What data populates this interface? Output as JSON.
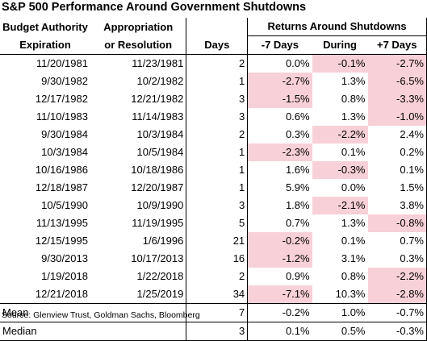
{
  "title": "S&P 500 Performance Around Government Shutdowns",
  "header": {
    "col1": [
      "Budget Authority",
      "Expiration"
    ],
    "col2": [
      "Appropriation",
      "or Resolution"
    ],
    "days": "Days",
    "group": "Returns Around Shutdowns",
    "minus7": "-7 Days",
    "during": "During",
    "plus7": "+7 Days"
  },
  "rows": [
    {
      "exp": "11/20/1981",
      "res": "11/23/1981",
      "days": "2",
      "m7": "0.0%",
      "during": "-0.1%",
      "p7": "-2.7%"
    },
    {
      "exp": "9/30/1982",
      "res": "10/2/1982",
      "days": "1",
      "m7": "-2.7%",
      "during": "1.3%",
      "p7": "-6.5%"
    },
    {
      "exp": "12/17/1982",
      "res": "12/21/1982",
      "days": "3",
      "m7": "-1.5%",
      "during": "0.8%",
      "p7": "-3.3%"
    },
    {
      "exp": "11/10/1983",
      "res": "11/14/1983",
      "days": "3",
      "m7": "0.6%",
      "during": "1.3%",
      "p7": "-1.0%"
    },
    {
      "exp": "9/30/1984",
      "res": "10/3/1984",
      "days": "2",
      "m7": "0.3%",
      "during": "-2.2%",
      "p7": "2.4%"
    },
    {
      "exp": "10/3/1984",
      "res": "10/5/1984",
      "days": "1",
      "m7": "-2.3%",
      "during": "0.1%",
      "p7": "0.2%"
    },
    {
      "exp": "10/16/1986",
      "res": "10/18/1986",
      "days": "1",
      "m7": "1.6%",
      "during": "-0.3%",
      "p7": "0.1%"
    },
    {
      "exp": "12/18/1987",
      "res": "12/20/1987",
      "days": "1",
      "m7": "5.9%",
      "during": "0.0%",
      "p7": "1.5%"
    },
    {
      "exp": "10/5/1990",
      "res": "10/9/1990",
      "days": "3",
      "m7": "1.8%",
      "during": "-2.1%",
      "p7": "3.8%"
    },
    {
      "exp": "11/13/1995",
      "res": "11/19/1995",
      "days": "5",
      "m7": "0.7%",
      "during": "1.3%",
      "p7": "-0.8%"
    },
    {
      "exp": "12/15/1995",
      "res": "1/6/1996",
      "days": "21",
      "m7": "-0.2%",
      "during": "0.1%",
      "p7": "0.7%"
    },
    {
      "exp": "9/30/2013",
      "res": "10/17/2013",
      "days": "16",
      "m7": "-1.2%",
      "during": "3.1%",
      "p7": "0.3%"
    },
    {
      "exp": "1/19/2018",
      "res": "1/22/2018",
      "days": "2",
      "m7": "0.9%",
      "during": "0.8%",
      "p7": "-2.2%"
    },
    {
      "exp": "12/21/2018",
      "res": "1/25/2019",
      "days": "34",
      "m7": "-7.1%",
      "during": "10.3%",
      "p7": "-2.8%"
    }
  ],
  "summary": [
    {
      "label": "Mean",
      "days": "7",
      "m7": "-0.2%",
      "during": "1.0%",
      "p7": "-0.7%"
    },
    {
      "label": "Median",
      "days": "3",
      "m7": "0.1%",
      "during": "0.5%",
      "p7": "-0.3%"
    }
  ],
  "source": "Source: Glenview Trust, Goldman Sachs, Bloomberg",
  "colors": {
    "negative_fill": "#f8d0d7",
    "border": "#000000"
  }
}
